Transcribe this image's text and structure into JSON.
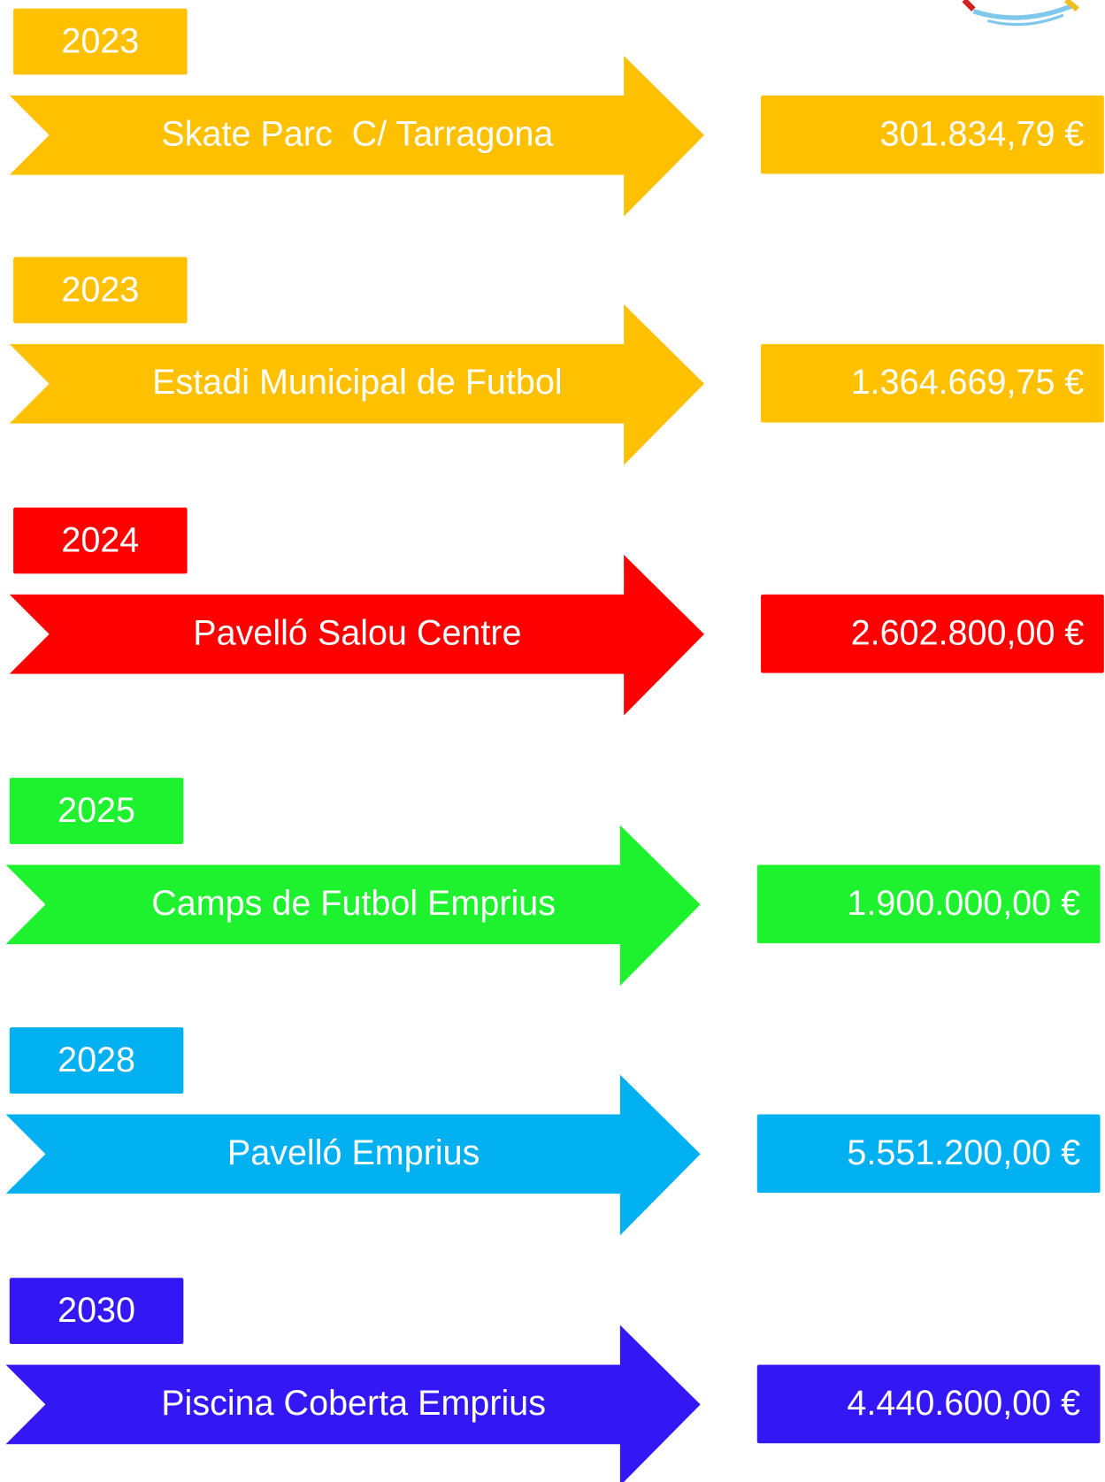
{
  "items": [
    {
      "year": "2023",
      "name": "Skate Parc  C/ Tarragona",
      "amount": "301.834,79 €",
      "color": "#FFC000"
    },
    {
      "year": "2023",
      "name": "Estadi Municipal de Futbol",
      "amount": "1.364.669,75 €",
      "color": "#FFC000"
    },
    {
      "year": "2024",
      "name": "Pavelló Salou Centre",
      "amount": "2.602.800,00 €",
      "color": "#FF0000"
    },
    {
      "year": "2025",
      "name": "Camps de Futbol Emprius",
      "amount": "1.900.000,00 €",
      "color": "#1EF22E"
    },
    {
      "year": "2028",
      "name": "Pavelló Emprius",
      "amount": "5.551.200,00 €",
      "color": "#00B0F0"
    },
    {
      "year": "2030",
      "name": "Piscina Coberta Emprius",
      "amount": "4.440.600,00 €",
      "color": "#3318F5"
    }
  ]
}
